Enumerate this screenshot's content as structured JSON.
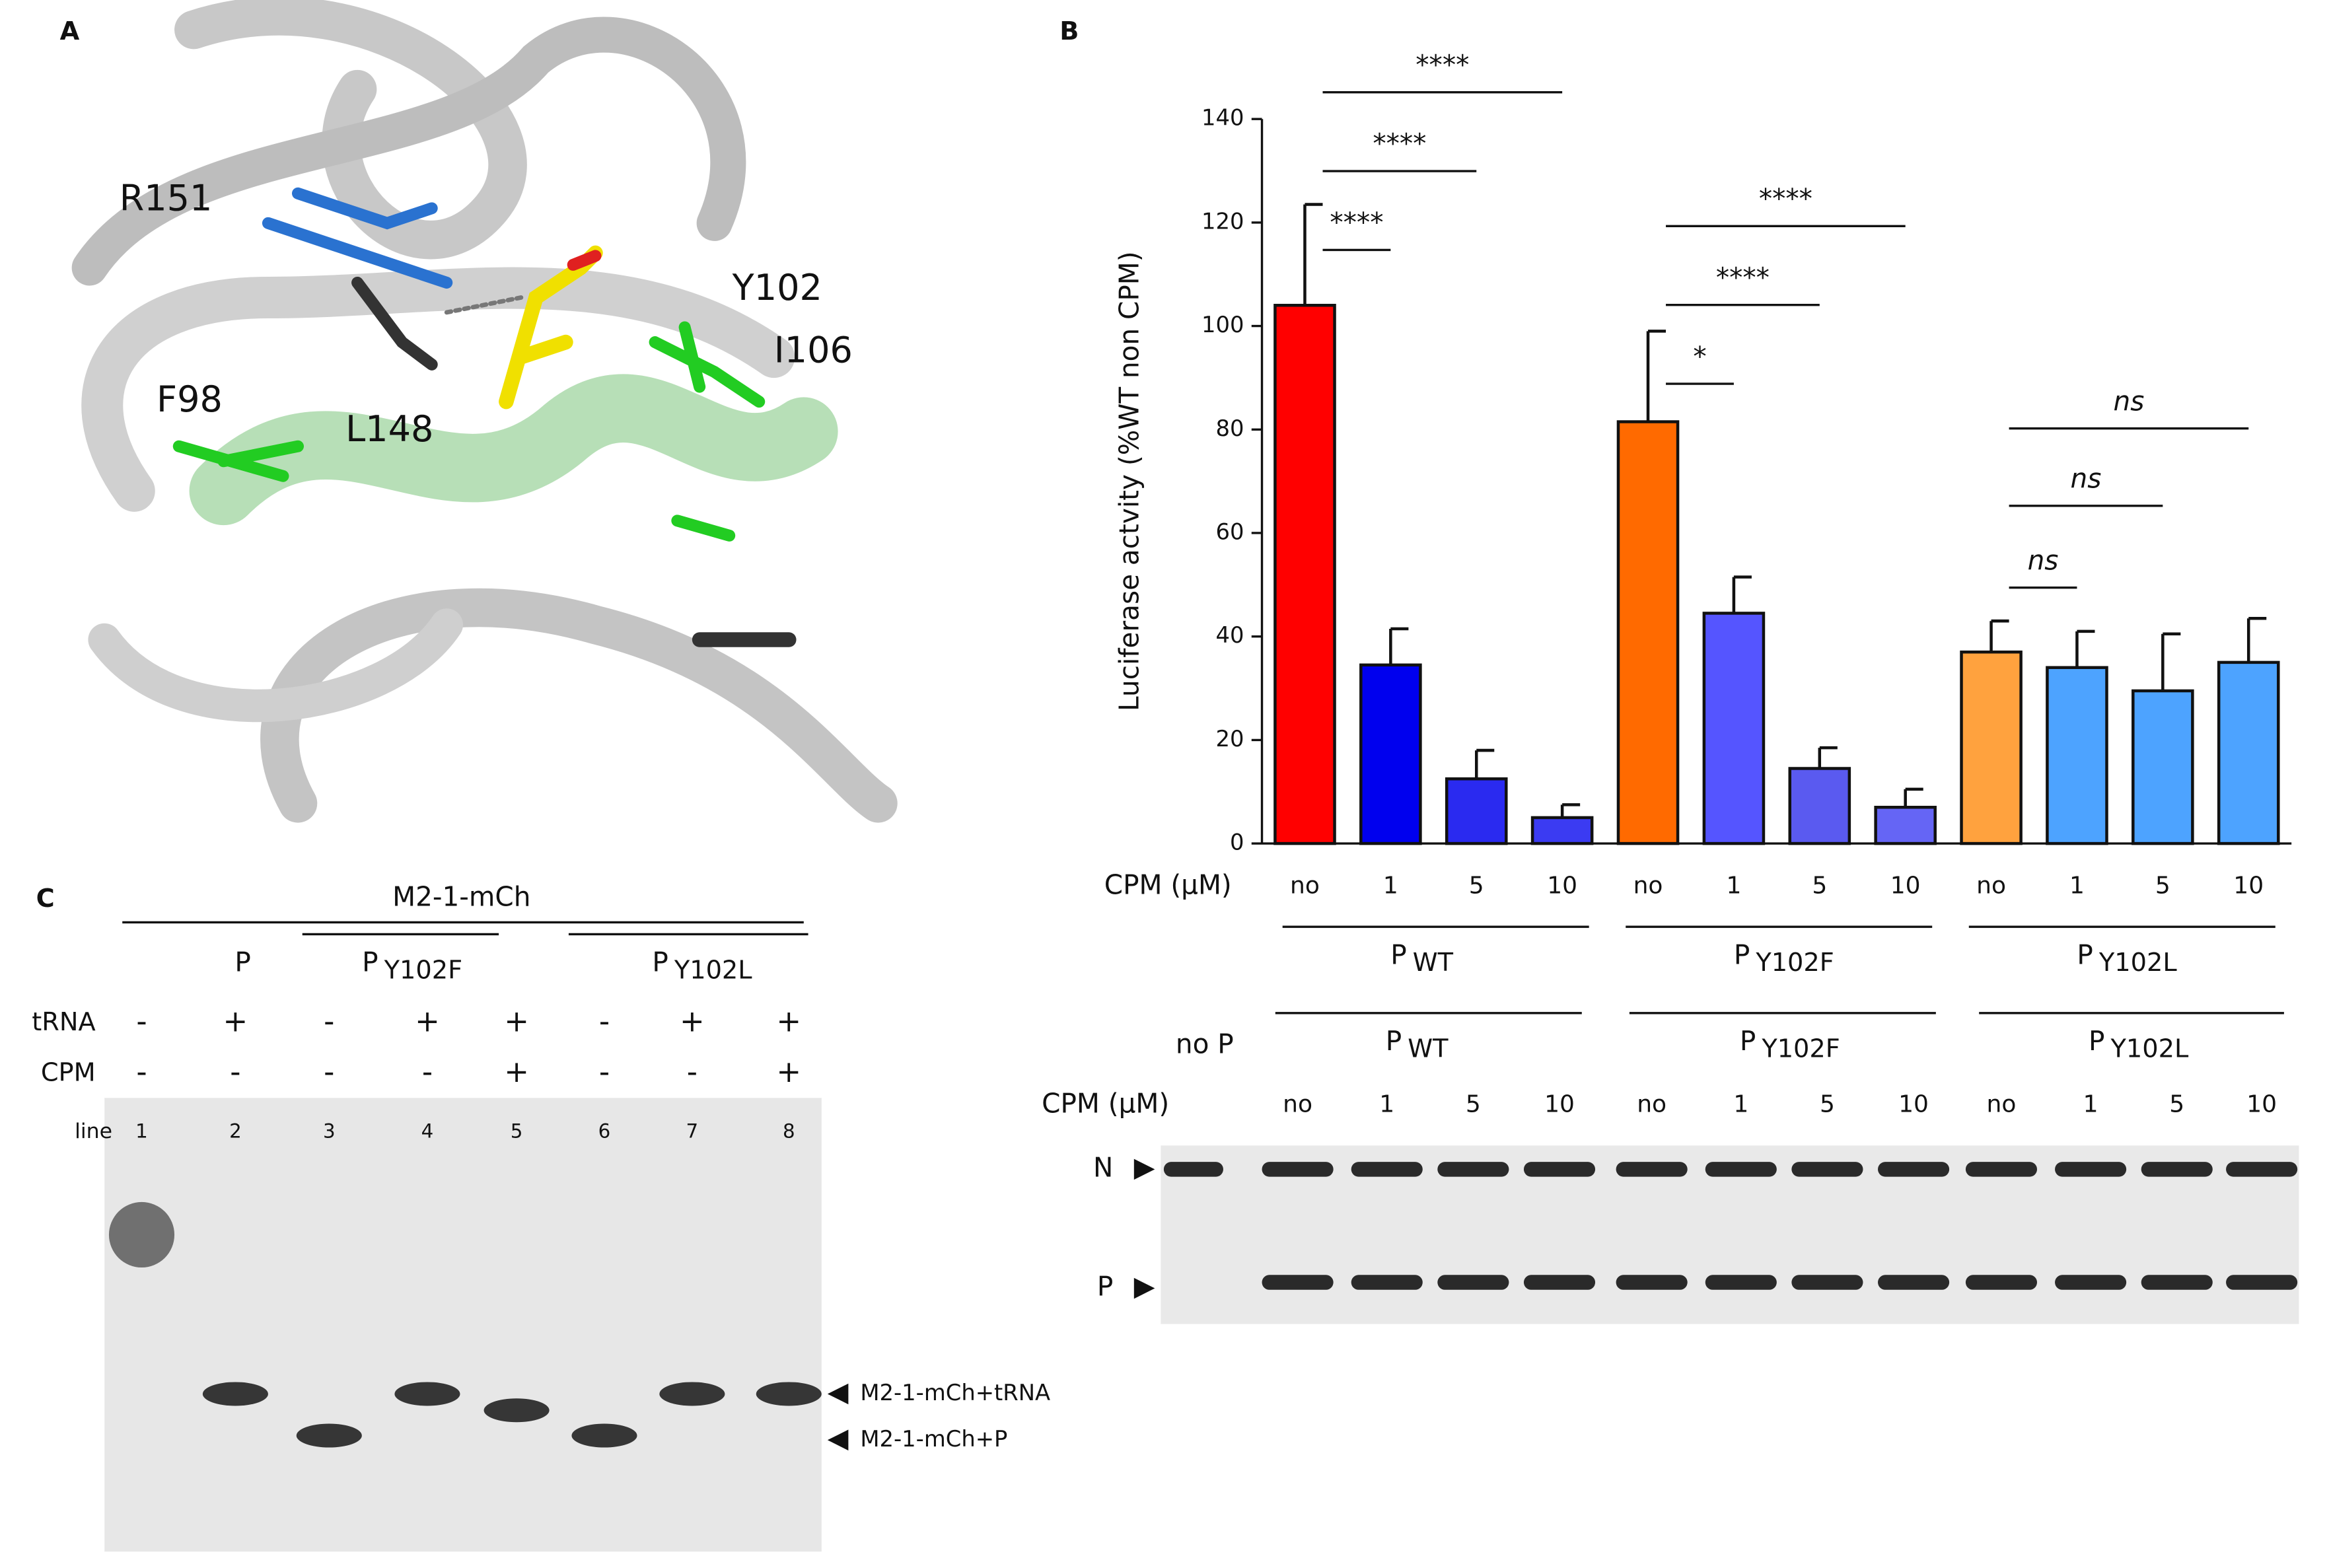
{
  "panels": {
    "a": "A",
    "b": "B",
    "c": "C"
  },
  "structure_labels": [
    {
      "text": "R151",
      "color": "#1f6fc2"
    },
    {
      "text": "Y102",
      "color": "#e8c600"
    },
    {
      "text": "I106",
      "color": "#4fbf22"
    },
    {
      "text": "F98",
      "color": "#4fbf22"
    },
    {
      "text": "L148",
      "color": "#555555"
    }
  ],
  "chart_data": {
    "type": "bar",
    "y_label": "Luciferase actvity (%WT non CPM)",
    "x_label": "CPM (µM)",
    "categories": [
      "no",
      "1",
      "5",
      "10",
      "no",
      "1",
      "5",
      "10",
      "no",
      "1",
      "5",
      "10"
    ],
    "values": [
      104,
      34.5,
      12.5,
      5,
      81.5,
      44.5,
      14.5,
      7,
      37,
      34,
      29.5,
      35
    ],
    "errors": [
      19.5,
      7,
      5.5,
      2.5,
      17.5,
      7,
      4,
      3.5,
      6,
      7,
      11,
      8.5
    ],
    "colors": [
      "#ff0000",
      "#0000ee",
      "#2a2af0",
      "#3b3bf2",
      "#ff6a00",
      "#5555ff",
      "#5a5af0",
      "#6565f5",
      "#ffa23e",
      "#4da3ff",
      "#4da3ff",
      "#4da3ff"
    ],
    "ylim": [
      0,
      140
    ],
    "yticks": [
      0,
      20,
      40,
      60,
      80,
      100,
      120,
      140
    ],
    "groups": [
      {
        "name": "P",
        "variant": "WT"
      },
      {
        "name": "P",
        "variant": "Y102F"
      },
      {
        "name": "P",
        "variant": "Y102L"
      }
    ],
    "significance": [
      {
        "label": "****",
        "from": 0,
        "to": 1
      },
      {
        "label": "****",
        "from": 0,
        "to": 2
      },
      {
        "label": "****",
        "from": 0,
        "to": 3
      },
      {
        "label": "*",
        "from": 4,
        "to": 5
      },
      {
        "label": "****",
        "from": 4,
        "to": 6
      },
      {
        "label": "****",
        "from": 4,
        "to": 7
      },
      {
        "label": "ns",
        "from": 8,
        "to": 9
      },
      {
        "label": "ns",
        "from": 8,
        "to": 10
      },
      {
        "label": "ns",
        "from": 8,
        "to": 11
      }
    ]
  },
  "blot": {
    "no_p": "no P",
    "cpm_label": "CPM (µM)",
    "groups": [
      {
        "name": "P",
        "variant": "WT"
      },
      {
        "name": "P",
        "variant": "Y102F"
      },
      {
        "name": "P",
        "variant": "Y102L"
      }
    ],
    "lanes": [
      "no",
      "1",
      "5",
      "10",
      "no",
      "1",
      "5",
      "10",
      "no",
      "1",
      "5",
      "10"
    ],
    "bands": [
      "N",
      "P"
    ]
  },
  "gel": {
    "title": "M2-1-mCh",
    "groups": [
      {
        "name": "P"
      },
      {
        "name": "P",
        "variant": "Y102F"
      },
      {
        "name": "P",
        "variant": "Y102L"
      }
    ],
    "rows": [
      {
        "label": "tRNA",
        "values": [
          "-",
          "+",
          "-",
          "+",
          "+",
          "-",
          "+",
          "+"
        ]
      },
      {
        "label": "CPM",
        "values": [
          "-",
          "-",
          "-",
          "-",
          "+",
          "-",
          "-",
          "+"
        ]
      }
    ],
    "lane_label": "line",
    "lanes": [
      "1",
      "2",
      "3",
      "4",
      "5",
      "6",
      "7",
      "8"
    ],
    "bands": [
      "M2-1-mCh+tRNA",
      "M2-1-mCh+P"
    ]
  }
}
